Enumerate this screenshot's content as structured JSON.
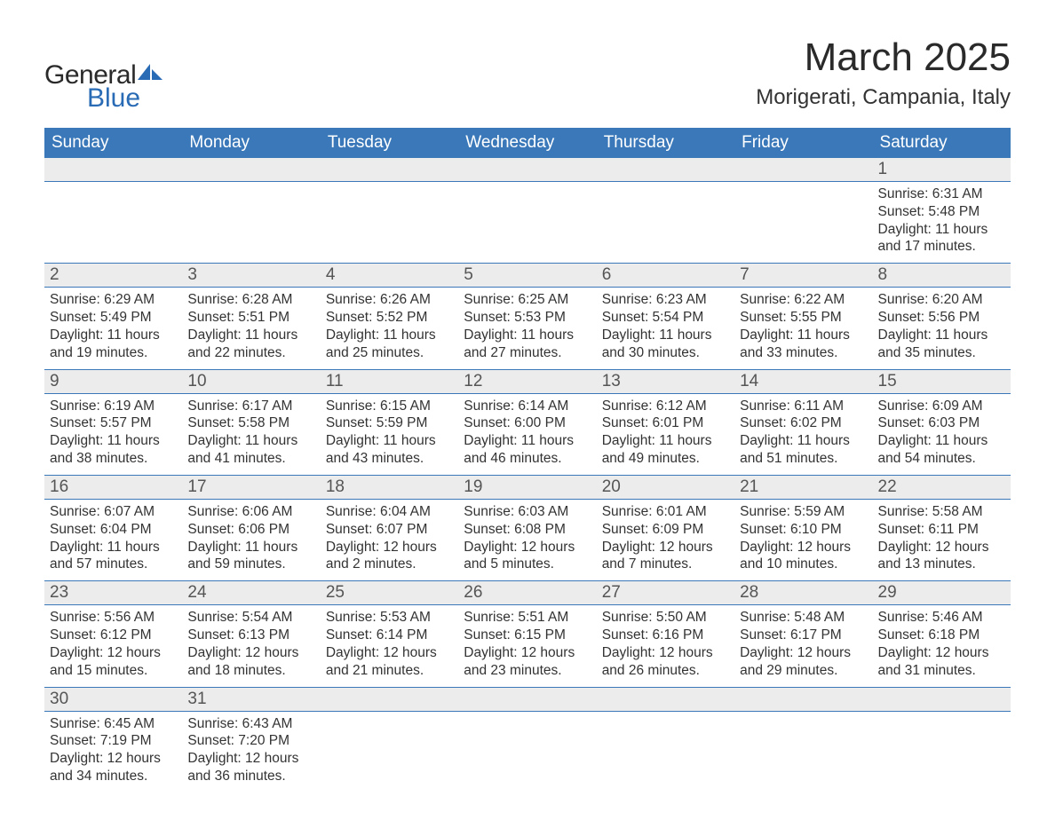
{
  "logo": {
    "word1": "General",
    "word2": "Blue",
    "accent_color": "#2a6bb5",
    "text_color": "#2a2a2a"
  },
  "title": "March 2025",
  "location": "Morigerati, Campania, Italy",
  "colors": {
    "header_bg": "#3a78b9",
    "header_fg": "#ffffff",
    "daynum_bg": "#ececec",
    "body_text": "#333333",
    "rule": "#3a78b9"
  },
  "fonts": {
    "title_size_pt": 33,
    "location_size_pt": 18,
    "weekday_size_pt": 14,
    "daynum_size_pt": 14,
    "body_size_pt": 12
  },
  "weekdays": [
    "Sunday",
    "Monday",
    "Tuesday",
    "Wednesday",
    "Thursday",
    "Friday",
    "Saturday"
  ],
  "weeks": [
    [
      null,
      null,
      null,
      null,
      null,
      null,
      {
        "n": "1",
        "sunrise": "Sunrise: 6:31 AM",
        "sunset": "Sunset: 5:48 PM",
        "day1": "Daylight: 11 hours",
        "day2": "and 17 minutes."
      }
    ],
    [
      {
        "n": "2",
        "sunrise": "Sunrise: 6:29 AM",
        "sunset": "Sunset: 5:49 PM",
        "day1": "Daylight: 11 hours",
        "day2": "and 19 minutes."
      },
      {
        "n": "3",
        "sunrise": "Sunrise: 6:28 AM",
        "sunset": "Sunset: 5:51 PM",
        "day1": "Daylight: 11 hours",
        "day2": "and 22 minutes."
      },
      {
        "n": "4",
        "sunrise": "Sunrise: 6:26 AM",
        "sunset": "Sunset: 5:52 PM",
        "day1": "Daylight: 11 hours",
        "day2": "and 25 minutes."
      },
      {
        "n": "5",
        "sunrise": "Sunrise: 6:25 AM",
        "sunset": "Sunset: 5:53 PM",
        "day1": "Daylight: 11 hours",
        "day2": "and 27 minutes."
      },
      {
        "n": "6",
        "sunrise": "Sunrise: 6:23 AM",
        "sunset": "Sunset: 5:54 PM",
        "day1": "Daylight: 11 hours",
        "day2": "and 30 minutes."
      },
      {
        "n": "7",
        "sunrise": "Sunrise: 6:22 AM",
        "sunset": "Sunset: 5:55 PM",
        "day1": "Daylight: 11 hours",
        "day2": "and 33 minutes."
      },
      {
        "n": "8",
        "sunrise": "Sunrise: 6:20 AM",
        "sunset": "Sunset: 5:56 PM",
        "day1": "Daylight: 11 hours",
        "day2": "and 35 minutes."
      }
    ],
    [
      {
        "n": "9",
        "sunrise": "Sunrise: 6:19 AM",
        "sunset": "Sunset: 5:57 PM",
        "day1": "Daylight: 11 hours",
        "day2": "and 38 minutes."
      },
      {
        "n": "10",
        "sunrise": "Sunrise: 6:17 AM",
        "sunset": "Sunset: 5:58 PM",
        "day1": "Daylight: 11 hours",
        "day2": "and 41 minutes."
      },
      {
        "n": "11",
        "sunrise": "Sunrise: 6:15 AM",
        "sunset": "Sunset: 5:59 PM",
        "day1": "Daylight: 11 hours",
        "day2": "and 43 minutes."
      },
      {
        "n": "12",
        "sunrise": "Sunrise: 6:14 AM",
        "sunset": "Sunset: 6:00 PM",
        "day1": "Daylight: 11 hours",
        "day2": "and 46 minutes."
      },
      {
        "n": "13",
        "sunrise": "Sunrise: 6:12 AM",
        "sunset": "Sunset: 6:01 PM",
        "day1": "Daylight: 11 hours",
        "day2": "and 49 minutes."
      },
      {
        "n": "14",
        "sunrise": "Sunrise: 6:11 AM",
        "sunset": "Sunset: 6:02 PM",
        "day1": "Daylight: 11 hours",
        "day2": "and 51 minutes."
      },
      {
        "n": "15",
        "sunrise": "Sunrise: 6:09 AM",
        "sunset": "Sunset: 6:03 PM",
        "day1": "Daylight: 11 hours",
        "day2": "and 54 minutes."
      }
    ],
    [
      {
        "n": "16",
        "sunrise": "Sunrise: 6:07 AM",
        "sunset": "Sunset: 6:04 PM",
        "day1": "Daylight: 11 hours",
        "day2": "and 57 minutes."
      },
      {
        "n": "17",
        "sunrise": "Sunrise: 6:06 AM",
        "sunset": "Sunset: 6:06 PM",
        "day1": "Daylight: 11 hours",
        "day2": "and 59 minutes."
      },
      {
        "n": "18",
        "sunrise": "Sunrise: 6:04 AM",
        "sunset": "Sunset: 6:07 PM",
        "day1": "Daylight: 12 hours",
        "day2": "and 2 minutes."
      },
      {
        "n": "19",
        "sunrise": "Sunrise: 6:03 AM",
        "sunset": "Sunset: 6:08 PM",
        "day1": "Daylight: 12 hours",
        "day2": "and 5 minutes."
      },
      {
        "n": "20",
        "sunrise": "Sunrise: 6:01 AM",
        "sunset": "Sunset: 6:09 PM",
        "day1": "Daylight: 12 hours",
        "day2": "and 7 minutes."
      },
      {
        "n": "21",
        "sunrise": "Sunrise: 5:59 AM",
        "sunset": "Sunset: 6:10 PM",
        "day1": "Daylight: 12 hours",
        "day2": "and 10 minutes."
      },
      {
        "n": "22",
        "sunrise": "Sunrise: 5:58 AM",
        "sunset": "Sunset: 6:11 PM",
        "day1": "Daylight: 12 hours",
        "day2": "and 13 minutes."
      }
    ],
    [
      {
        "n": "23",
        "sunrise": "Sunrise: 5:56 AM",
        "sunset": "Sunset: 6:12 PM",
        "day1": "Daylight: 12 hours",
        "day2": "and 15 minutes."
      },
      {
        "n": "24",
        "sunrise": "Sunrise: 5:54 AM",
        "sunset": "Sunset: 6:13 PM",
        "day1": "Daylight: 12 hours",
        "day2": "and 18 minutes."
      },
      {
        "n": "25",
        "sunrise": "Sunrise: 5:53 AM",
        "sunset": "Sunset: 6:14 PM",
        "day1": "Daylight: 12 hours",
        "day2": "and 21 minutes."
      },
      {
        "n": "26",
        "sunrise": "Sunrise: 5:51 AM",
        "sunset": "Sunset: 6:15 PM",
        "day1": "Daylight: 12 hours",
        "day2": "and 23 minutes."
      },
      {
        "n": "27",
        "sunrise": "Sunrise: 5:50 AM",
        "sunset": "Sunset: 6:16 PM",
        "day1": "Daylight: 12 hours",
        "day2": "and 26 minutes."
      },
      {
        "n": "28",
        "sunrise": "Sunrise: 5:48 AM",
        "sunset": "Sunset: 6:17 PM",
        "day1": "Daylight: 12 hours",
        "day2": "and 29 minutes."
      },
      {
        "n": "29",
        "sunrise": "Sunrise: 5:46 AM",
        "sunset": "Sunset: 6:18 PM",
        "day1": "Daylight: 12 hours",
        "day2": "and 31 minutes."
      }
    ],
    [
      {
        "n": "30",
        "sunrise": "Sunrise: 6:45 AM",
        "sunset": "Sunset: 7:19 PM",
        "day1": "Daylight: 12 hours",
        "day2": "and 34 minutes."
      },
      {
        "n": "31",
        "sunrise": "Sunrise: 6:43 AM",
        "sunset": "Sunset: 7:20 PM",
        "day1": "Daylight: 12 hours",
        "day2": "and 36 minutes."
      },
      null,
      null,
      null,
      null,
      null
    ]
  ]
}
